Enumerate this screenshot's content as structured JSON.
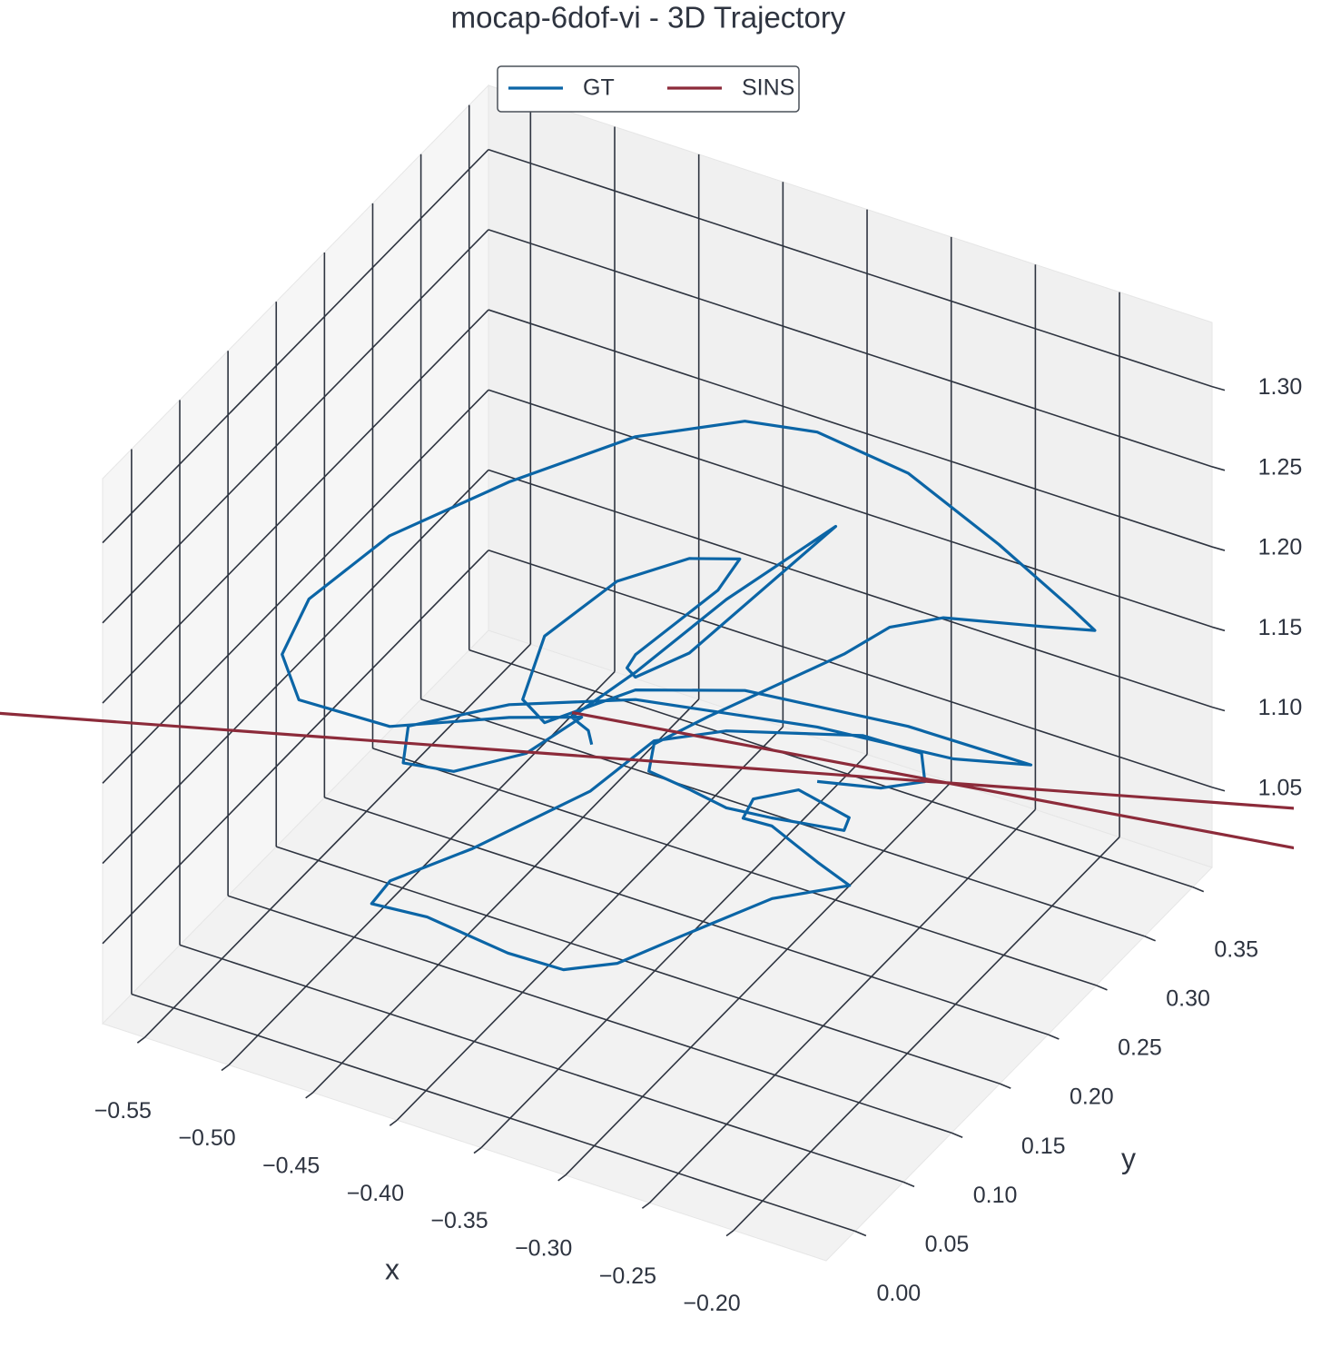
{
  "chart_data": {
    "type": "line3d",
    "title": "mocap-6dof-vi - 3D Trajectory",
    "xlabel": "x",
    "ylabel": "y",
    "legend": "upper center",
    "grid": true,
    "xlim": [
      -0.575,
      -0.145
    ],
    "ylim": [
      -0.03,
      0.37
    ],
    "zlim": [
      1.0,
      1.34
    ],
    "xticks": [
      {
        "value": -0.55,
        "label": "−0.55"
      },
      {
        "value": -0.5,
        "label": "−0.50"
      },
      {
        "value": -0.45,
        "label": "−0.45"
      },
      {
        "value": -0.4,
        "label": "−0.40"
      },
      {
        "value": -0.35,
        "label": "−0.35"
      },
      {
        "value": -0.3,
        "label": "−0.30"
      },
      {
        "value": -0.25,
        "label": "−0.25"
      },
      {
        "value": -0.2,
        "label": "−0.20"
      }
    ],
    "yticks": [
      {
        "value": 0,
        "label": "0.00"
      },
      0.05,
      {
        "value": 0.1,
        "label": "0.10"
      },
      0.15,
      {
        "value": 0.2,
        "label": "0.20"
      },
      0.25,
      {
        "value": 0.3,
        "label": "0.30"
      },
      0.35
    ],
    "zticks": [
      1.05,
      {
        "value": 1.1,
        "label": "1.10"
      },
      1.15,
      {
        "value": 1.2,
        "label": "1.20"
      },
      1.25,
      {
        "value": 1.3,
        "label": "1.30"
      }
    ],
    "series": [
      {
        "name": "GT",
        "color": "#0b65a6",
        "x": [
          -0.399,
          -0.401,
          -0.411,
          -0.373,
          -0.319,
          -0.254,
          -0.341,
          -0.373,
          -0.378,
          -0.373,
          -0.324,
          -0.311,
          -0.341,
          -0.384,
          -0.427,
          -0.44,
          -0.427,
          -0.373,
          -0.308,
          -0.211,
          -0.138,
          -0.184,
          -0.265,
          -0.373,
          -0.448,
          -0.508,
          -0.511,
          -0.481,
          -0.438,
          -0.405,
          -0.448,
          -0.519,
          -0.573,
          -0.583,
          -0.567,
          -0.519,
          -0.448,
          -0.373,
          -0.308,
          -0.265,
          -0.211,
          -0.157,
          -0.114,
          -0.1,
          -0.13,
          -0.19,
          -0.222,
          -0.249,
          -0.33,
          -0.362,
          -0.365,
          -0.341,
          -0.319,
          -0.292,
          -0.249,
          -0.246,
          -0.276,
          -0.303,
          -0.309,
          -0.292,
          -0.196,
          -0.177,
          -0.223,
          -0.277,
          -0.315,
          -0.347,
          -0.38,
          -0.428,
          -0.461,
          -0.45,
          -0.401,
          -0.331,
          -0.362,
          -0.319,
          -0.238,
          -0.203,
          -0.201,
          -0.227,
          -0.265
        ],
        "y": [
          0.17,
          0.17,
          0.17,
          0.17,
          0.17,
          0.17,
          0.17,
          0.17,
          0.17,
          0.17,
          0.17,
          0.17,
          0.17,
          0.17,
          0.17,
          0.17,
          0.17,
          0.17,
          0.17,
          0.17,
          0.17,
          0.17,
          0.17,
          0.17,
          0.17,
          0.17,
          0.17,
          0.17,
          0.17,
          0.17,
          0.17,
          0.17,
          0.17,
          0.17,
          0.17,
          0.17,
          0.17,
          0.17,
          0.17,
          0.17,
          0.17,
          0.17,
          0.17,
          0.17,
          0.17,
          0.17,
          0.17,
          0.17,
          0.17,
          0.17,
          0.17,
          0.17,
          0.17,
          0.17,
          0.17,
          0.17,
          0.17,
          0.17,
          0.17,
          0.17,
          0.05,
          0.05,
          0.05,
          0.05,
          0.05,
          0.05,
          0.05,
          0.05,
          0.05,
          0.05,
          0.05,
          0.05,
          0.17,
          0.17,
          0.17,
          0.17,
          0.17,
          0.17,
          0.17
        ],
        "z": [
          1.112,
          1.12,
          1.125,
          1.166,
          1.23,
          1.298,
          1.189,
          1.163,
          1.167,
          1.177,
          1.234,
          1.258,
          1.248,
          1.219,
          1.17,
          1.126,
          1.116,
          1.155,
          1.177,
          1.188,
          1.189,
          1.177,
          1.169,
          1.149,
          1.12,
          1.086,
          1.062,
          1.067,
          1.093,
          1.127,
          1.112,
          1.082,
          1.08,
          1.105,
          1.145,
          1.201,
          1.259,
          1.313,
          1.345,
          1.353,
          1.346,
          1.32,
          1.295,
          1.286,
          1.278,
          1.263,
          1.246,
          1.22,
          1.153,
          1.125,
          1.107,
          1.104,
          1.1,
          1.103,
          1.11,
          1.119,
          1.126,
          1.111,
          1.097,
          1.098,
          1.182,
          1.174,
          1.15,
          1.108,
          1.078,
          1.063,
          1.062,
          1.068,
          1.065,
          1.083,
          1.12,
          1.18,
          1.127,
          1.148,
          1.173,
          1.174,
          1.157,
          1.144,
          1.135
        ]
      },
      {
        "name": "SINS",
        "color": "#8c2b3a",
        "x": [
          -0.429,
          -0.014,
          -0.031,
          -0.706
        ],
        "y": [
          0.202,
          0.286,
          0.323,
          0.049
        ],
        "z": [
          1.102,
          1.102,
          1.102,
          1.102
        ]
      }
    ]
  }
}
